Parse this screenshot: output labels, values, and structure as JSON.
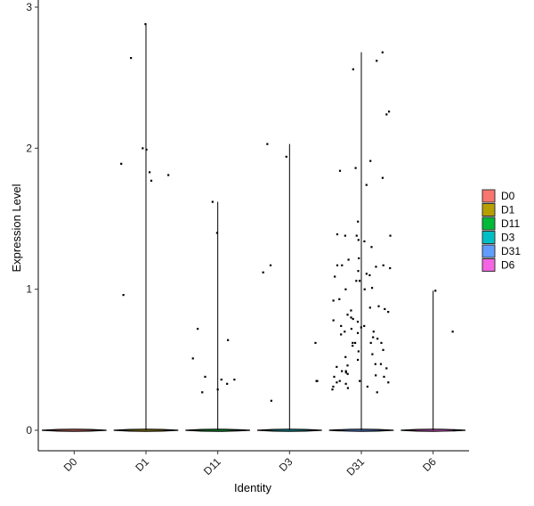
{
  "chart_data": {
    "type": "violin",
    "title": "",
    "xlabel": "Identity",
    "ylabel": "Expression Level",
    "ylim": [
      -0.15,
      3.02
    ],
    "yticks": [
      0,
      1,
      2,
      3
    ],
    "grid": false,
    "legend_position": "right",
    "categories": [
      "D0",
      "D1",
      "D11",
      "D3",
      "D31",
      "D6"
    ],
    "legend": [
      {
        "label": "D0",
        "color": "#F8766D"
      },
      {
        "label": "D1",
        "color": "#B79F00"
      },
      {
        "label": "D11",
        "color": "#00BA38"
      },
      {
        "label": "D3",
        "color": "#00BFC4"
      },
      {
        "label": "D31",
        "color": "#619CFF"
      },
      {
        "label": "D6",
        "color": "#F564E3"
      }
    ],
    "violin_max": [
      0,
      2.88,
      1.62,
      2.03,
      2.68,
      0.99
    ],
    "points": [
      {
        "group": "D1",
        "values": [
          2.88,
          1.83,
          0.96,
          2.64,
          2.0,
          1.99,
          1.89,
          1.81,
          1.77
        ]
      },
      {
        "group": "D11",
        "values": [
          1.62,
          0.38,
          0.36,
          0.33,
          0.51,
          0.29,
          0.27,
          0.64,
          0.72,
          0.36,
          1.4
        ]
      },
      {
        "group": "D3",
        "values": [
          1.17,
          1.12,
          0.62,
          0.35,
          2.03,
          1.94,
          0.35,
          0.21
        ]
      },
      {
        "group": "D31",
        "values": [
          1.38,
          1.34,
          1.3,
          1.21,
          1.17,
          1.15,
          1.13,
          1.0,
          0.74,
          0.72,
          0.68,
          0.65,
          0.62,
          0.6,
          0.45,
          0.44,
          0.41,
          0.38,
          0.35,
          0.33,
          0.31,
          1.86,
          2.62,
          1.91,
          1.84,
          1.38,
          1.35,
          1.17,
          1.09,
          1.06,
          1.01,
          0.87,
          0.84,
          0.8,
          0.77,
          0.73,
          0.69,
          0.62,
          0.56,
          0.5,
          0.46,
          0.42,
          0.39,
          0.35,
          0.3,
          0.27,
          2.68,
          2.26,
          2.24,
          1.79,
          1.16,
          1.1,
          1.0,
          0.92,
          0.85,
          0.79,
          0.7,
          0.62,
          0.54,
          0.47,
          0.4,
          0.34,
          0.29,
          2.56,
          1.74,
          1.48,
          1.39,
          1.38,
          1.22,
          1.17,
          1.11,
          1.06,
          0.93,
          0.88,
          0.86,
          0.82,
          0.78,
          0.74,
          0.7,
          0.66,
          0.62,
          0.57,
          0.52,
          0.47,
          0.42,
          0.38,
          0.34,
          0.31
        ]
      },
      {
        "group": "D6",
        "values": [
          0.99,
          0.7
        ]
      }
    ]
  }
}
